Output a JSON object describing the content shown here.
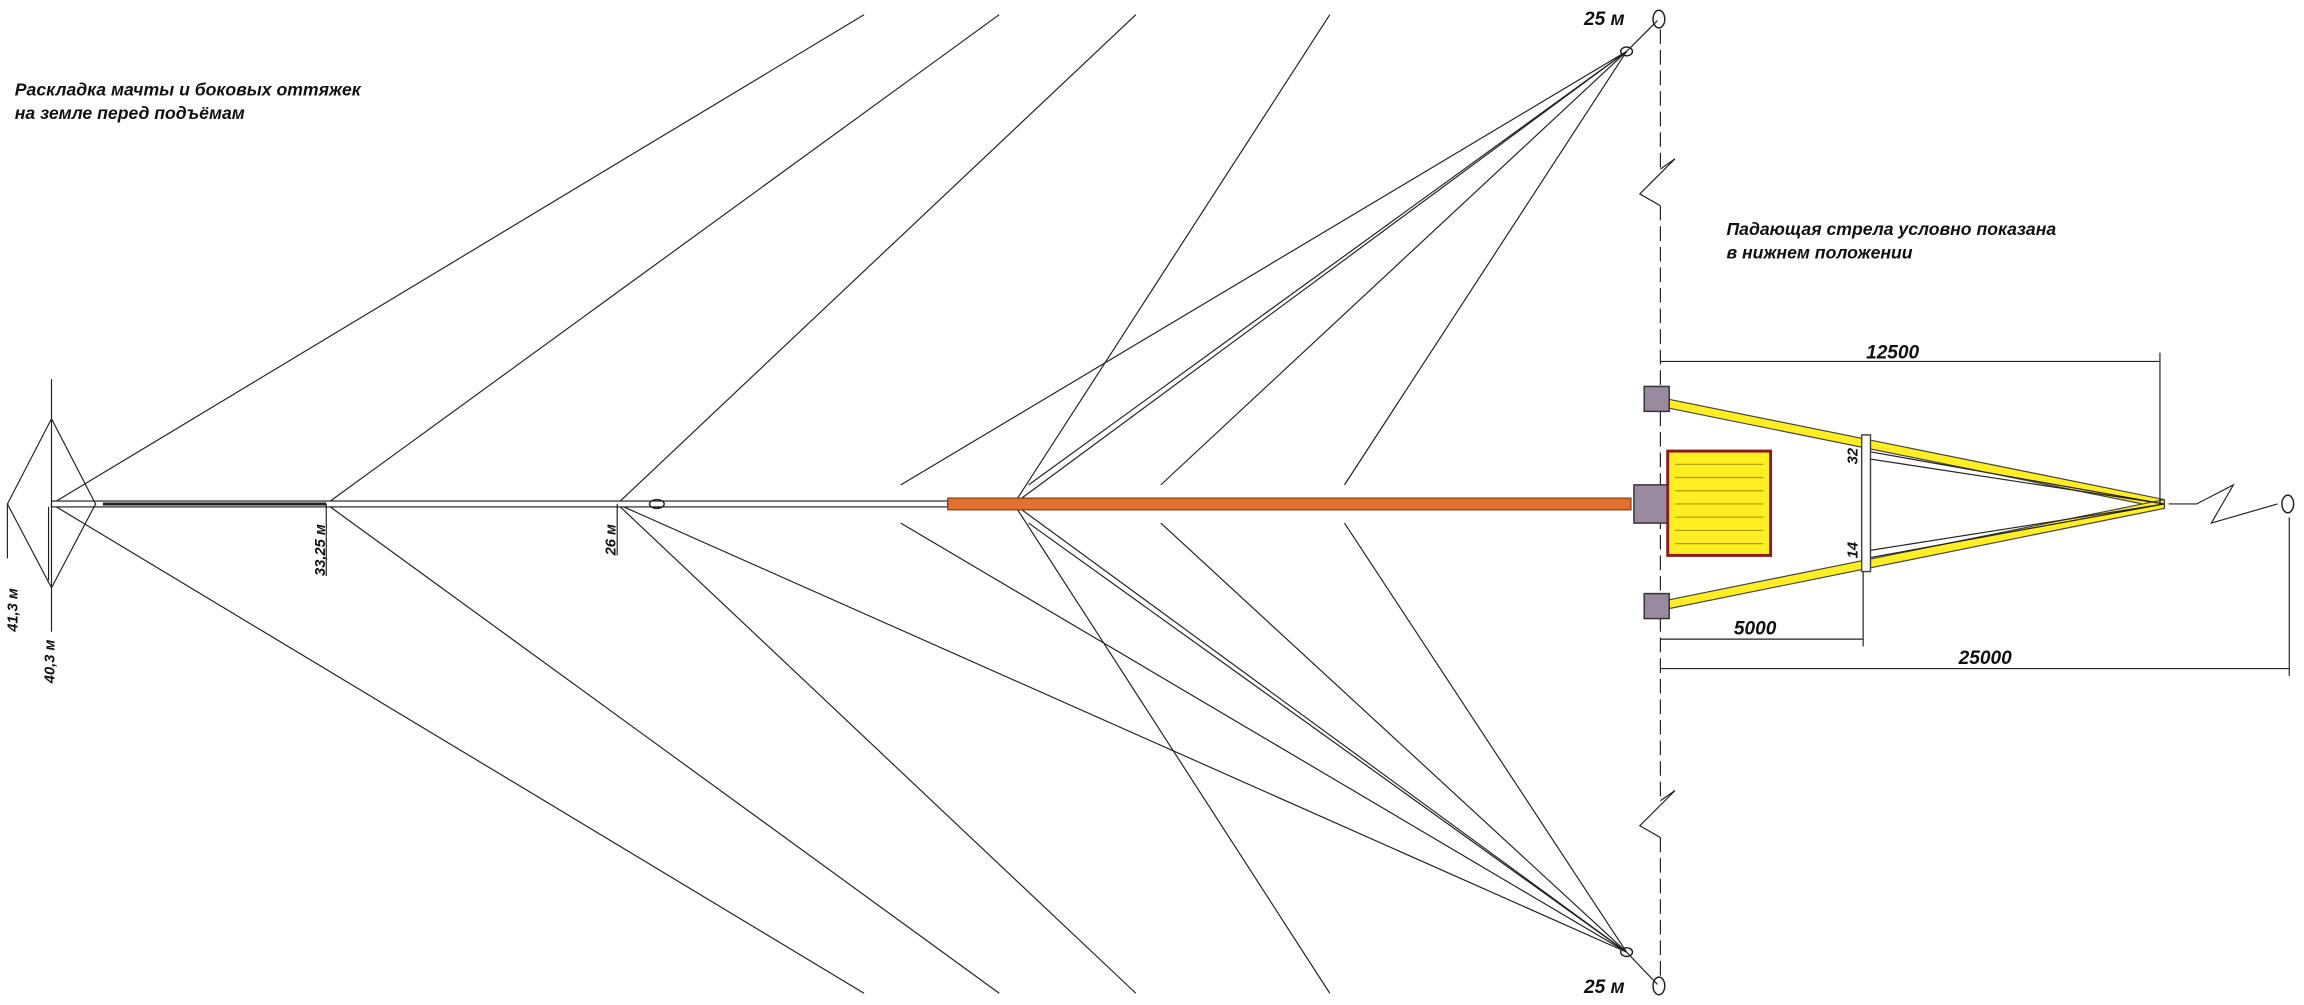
{
  "notes": {
    "layout": [
      "Раскладка мачты и боковых оттяжек",
      "на земле перед подъёмам"
    ],
    "boom": [
      "Падающая стрела условно показана",
      "в нижнем положении"
    ]
  },
  "anchors": {
    "top": "25 м",
    "bottom": "25 м",
    "zero_top": "0",
    "zero_bottom": "0",
    "zero_right": "0"
  },
  "mast_marks": [
    "33,25 м",
    "26 м",
    "41,3 м",
    "40,3 м"
  ],
  "dimensions": {
    "width": "12500",
    "short": "5000",
    "long": "25000"
  },
  "frame_marks": [
    "32",
    "14"
  ]
}
